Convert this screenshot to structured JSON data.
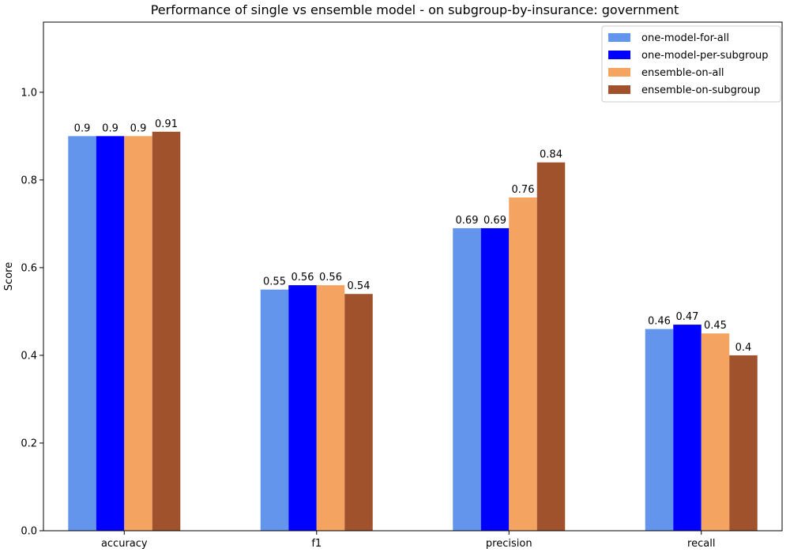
{
  "chart_data": {
    "type": "bar",
    "title": "Performance of single vs ensemble model - on subgroup-by-insurance: government",
    "xlabel": "",
    "ylabel": "Score",
    "ylim": [
      0,
      1.16
    ],
    "yticks": [
      0.0,
      0.2,
      0.4,
      0.6,
      0.8,
      1.0
    ],
    "ytick_labels": [
      "0.0",
      "0.2",
      "0.4",
      "0.6",
      "0.8",
      "1.0"
    ],
    "grid": false,
    "legend_position": "top-right",
    "categories": [
      "accuracy",
      "f1",
      "precision",
      "recall"
    ],
    "series": [
      {
        "name": "one-model-for-all",
        "color": "#6495ED",
        "values": [
          0.9,
          0.55,
          0.69,
          0.46
        ],
        "labels": [
          "0.9",
          "0.55",
          "0.69",
          "0.46"
        ]
      },
      {
        "name": "one-model-per-subgroup",
        "color": "#0000FF",
        "values": [
          0.9,
          0.56,
          0.69,
          0.47
        ],
        "labels": [
          "0.9",
          "0.56",
          "0.69",
          "0.47"
        ]
      },
      {
        "name": "ensemble-on-all",
        "color": "#F4A460",
        "values": [
          0.9,
          0.56,
          0.76,
          0.45
        ],
        "labels": [
          "0.9",
          "0.56",
          "0.76",
          "0.45"
        ]
      },
      {
        "name": "ensemble-on-subgroup",
        "color": "#A0522D",
        "values": [
          0.91,
          0.54,
          0.84,
          0.4
        ],
        "labels": [
          "0.91",
          "0.54",
          "0.84",
          "0.4"
        ]
      }
    ]
  }
}
